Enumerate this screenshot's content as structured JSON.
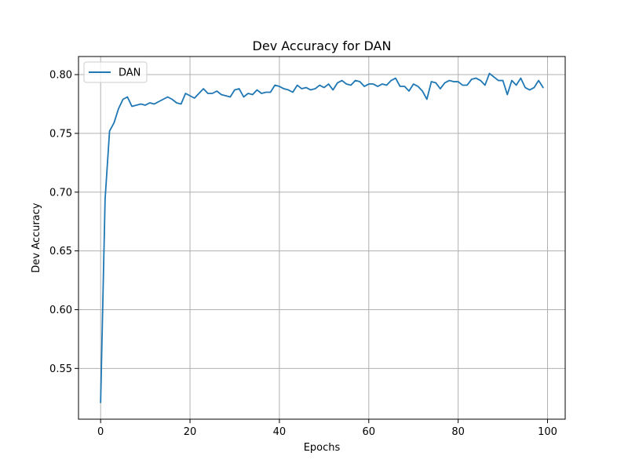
{
  "chart_data": {
    "type": "line",
    "title": "Dev Accuracy for DAN",
    "xlabel": "Epochs",
    "ylabel": "Dev Accuracy",
    "xlim": [
      -4.95,
      103.95
    ],
    "ylim": [
      0.5068,
      0.8154
    ],
    "xticks": [
      0,
      20,
      40,
      60,
      80,
      100
    ],
    "yticks": [
      0.55,
      0.6,
      0.65,
      0.7,
      0.75,
      0.8
    ],
    "grid": true,
    "legend_position": "top-left",
    "series": [
      {
        "name": "DAN",
        "color": "#1f77b4",
        "x": [
          0,
          1,
          2,
          3,
          4,
          5,
          6,
          7,
          8,
          9,
          10,
          11,
          12,
          13,
          14,
          15,
          16,
          17,
          18,
          19,
          20,
          21,
          22,
          23,
          24,
          25,
          26,
          27,
          28,
          29,
          30,
          31,
          32,
          33,
          34,
          35,
          36,
          37,
          38,
          39,
          40,
          41,
          42,
          43,
          44,
          45,
          46,
          47,
          48,
          49,
          50,
          51,
          52,
          53,
          54,
          55,
          56,
          57,
          58,
          59,
          60,
          61,
          62,
          63,
          64,
          65,
          66,
          67,
          68,
          69,
          70,
          71,
          72,
          73,
          74,
          75,
          76,
          77,
          78,
          79,
          80,
          81,
          82,
          83,
          84,
          85,
          86,
          87,
          88,
          89,
          90,
          91,
          92,
          93,
          94,
          95,
          96,
          97,
          98,
          99
        ],
        "values": [
          0.521,
          0.694,
          0.752,
          0.759,
          0.771,
          0.779,
          0.781,
          0.773,
          0.774,
          0.775,
          0.774,
          0.776,
          0.775,
          0.777,
          0.779,
          0.781,
          0.779,
          0.776,
          0.775,
          0.784,
          0.782,
          0.78,
          0.784,
          0.788,
          0.784,
          0.784,
          0.786,
          0.783,
          0.782,
          0.781,
          0.787,
          0.788,
          0.781,
          0.784,
          0.783,
          0.787,
          0.784,
          0.785,
          0.785,
          0.791,
          0.79,
          0.788,
          0.787,
          0.785,
          0.791,
          0.788,
          0.789,
          0.787,
          0.788,
          0.791,
          0.789,
          0.792,
          0.787,
          0.793,
          0.795,
          0.792,
          0.791,
          0.795,
          0.794,
          0.79,
          0.792,
          0.792,
          0.79,
          0.792,
          0.791,
          0.795,
          0.797,
          0.79,
          0.79,
          0.786,
          0.792,
          0.79,
          0.786,
          0.779,
          0.794,
          0.793,
          0.788,
          0.793,
          0.795,
          0.794,
          0.794,
          0.791,
          0.791,
          0.796,
          0.797,
          0.795,
          0.791,
          0.801,
          0.798,
          0.795,
          0.795,
          0.783,
          0.795,
          0.791,
          0.797,
          0.789,
          0.787,
          0.789,
          0.795,
          0.789
        ]
      }
    ]
  }
}
